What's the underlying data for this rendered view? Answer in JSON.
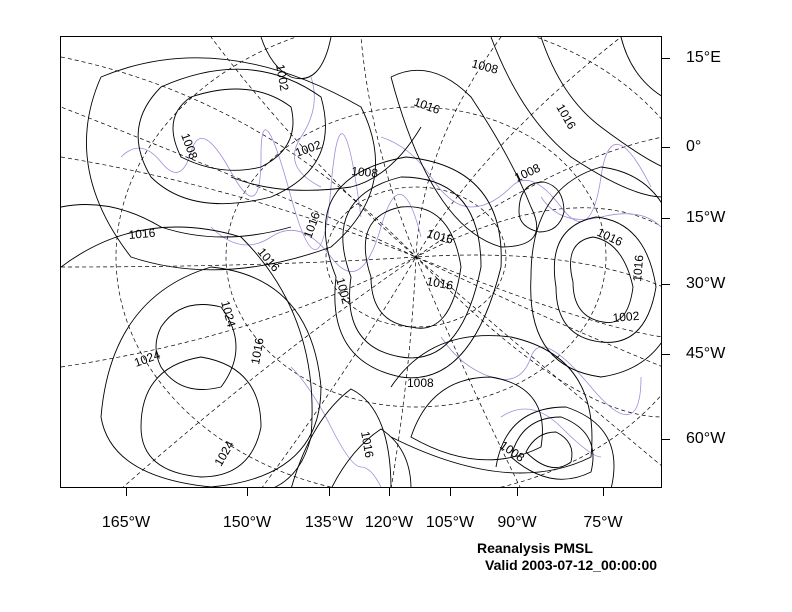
{
  "bottom_axis_labels": [
    "165°W",
    "150°W",
    "135°W",
    "120°W",
    "105°W",
    "90°W",
    "75°W"
  ],
  "right_axis_labels": [
    "15°E",
    "0°",
    "15°W",
    "30°W",
    "45°W",
    "60°W"
  ],
  "contour_labels": [
    "1002",
    "1008",
    "1016",
    "1002",
    "1008",
    "1016",
    "1016",
    "1008",
    "1008",
    "1016",
    "1016",
    "1016",
    "1002",
    "1016",
    "1016",
    "1002",
    "1016",
    "1024",
    "1024",
    "1008",
    "1016",
    "1024",
    "1016",
    "1008"
  ],
  "footer": {
    "title": "Reanalysis PMSL",
    "valid": "Valid 2003-07-12_00:00:00"
  },
  "colors": {
    "contour": "#000000",
    "coastline": "#a58ad8",
    "grid": "#000000",
    "frame": "#000000"
  }
}
